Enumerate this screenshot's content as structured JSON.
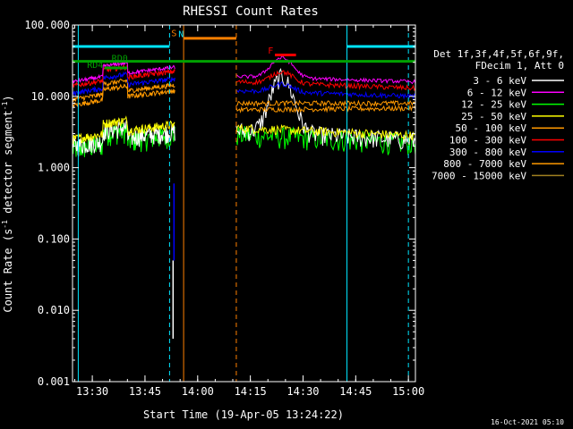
{
  "chart_data": {
    "type": "line",
    "title": "RHESSI Count Rates",
    "xlabel": "Start Time (19-Apr-05 13:24:22)",
    "ylabel_main": "Count Rate (s",
    "ylabel_exp1": "-1",
    "ylabel_mid": " detector segment",
    "ylabel_exp2": "-1",
    "ylabel_end": ")",
    "y_scale": "log",
    "ylim": [
      0.001,
      100
    ],
    "xlim": [
      "13:24:22",
      "15:02:00"
    ],
    "x_ticks": [
      "13:30",
      "13:45",
      "14:00",
      "14:15",
      "14:30",
      "14:45",
      "15:00"
    ],
    "y_ticks": [
      "0.001",
      "0.010",
      "0.100",
      "1.000",
      "10.000",
      "100.000"
    ],
    "legend_header": [
      "Det 1f,3f,4f,5f,6f,9f,",
      "FDecim 1, Att 0"
    ],
    "legend_position": "right",
    "series": [
      {
        "name": "3 - 6 keV",
        "color": "#ffffff"
      },
      {
        "name": "6 - 12 keV",
        "color": "#ff00ff"
      },
      {
        "name": "12 - 25 keV",
        "color": "#00ff00"
      },
      {
        "name": "25 - 50 keV",
        "color": "#ffff00"
      },
      {
        "name": "50 - 100 keV",
        "color": "#ff9900"
      },
      {
        "name": "100 - 300 keV",
        "color": "#ff0000"
      },
      {
        "name": "300 - 800 keV",
        "color": "#0000ff"
      },
      {
        "name": "800 - 7000 keV",
        "color": "#ff9900"
      },
      {
        "name": "7000 - 15000 keV",
        "color": "#a08020"
      }
    ],
    "annotations": [
      {
        "label": "N",
        "color": "#00e5ff",
        "level": 50
      },
      {
        "label": "S",
        "color": "#ff8000",
        "level": 65
      },
      {
        "label": "F",
        "color": "#ff0000",
        "level": 38
      },
      {
        "label": "RD4",
        "color": "#00a000",
        "level": 25
      },
      {
        "label": "RD0",
        "color": "#00a000",
        "level": 31
      }
    ],
    "grid": false
  },
  "footer": {
    "timestamp": "16-Oct-2021 05:10"
  }
}
